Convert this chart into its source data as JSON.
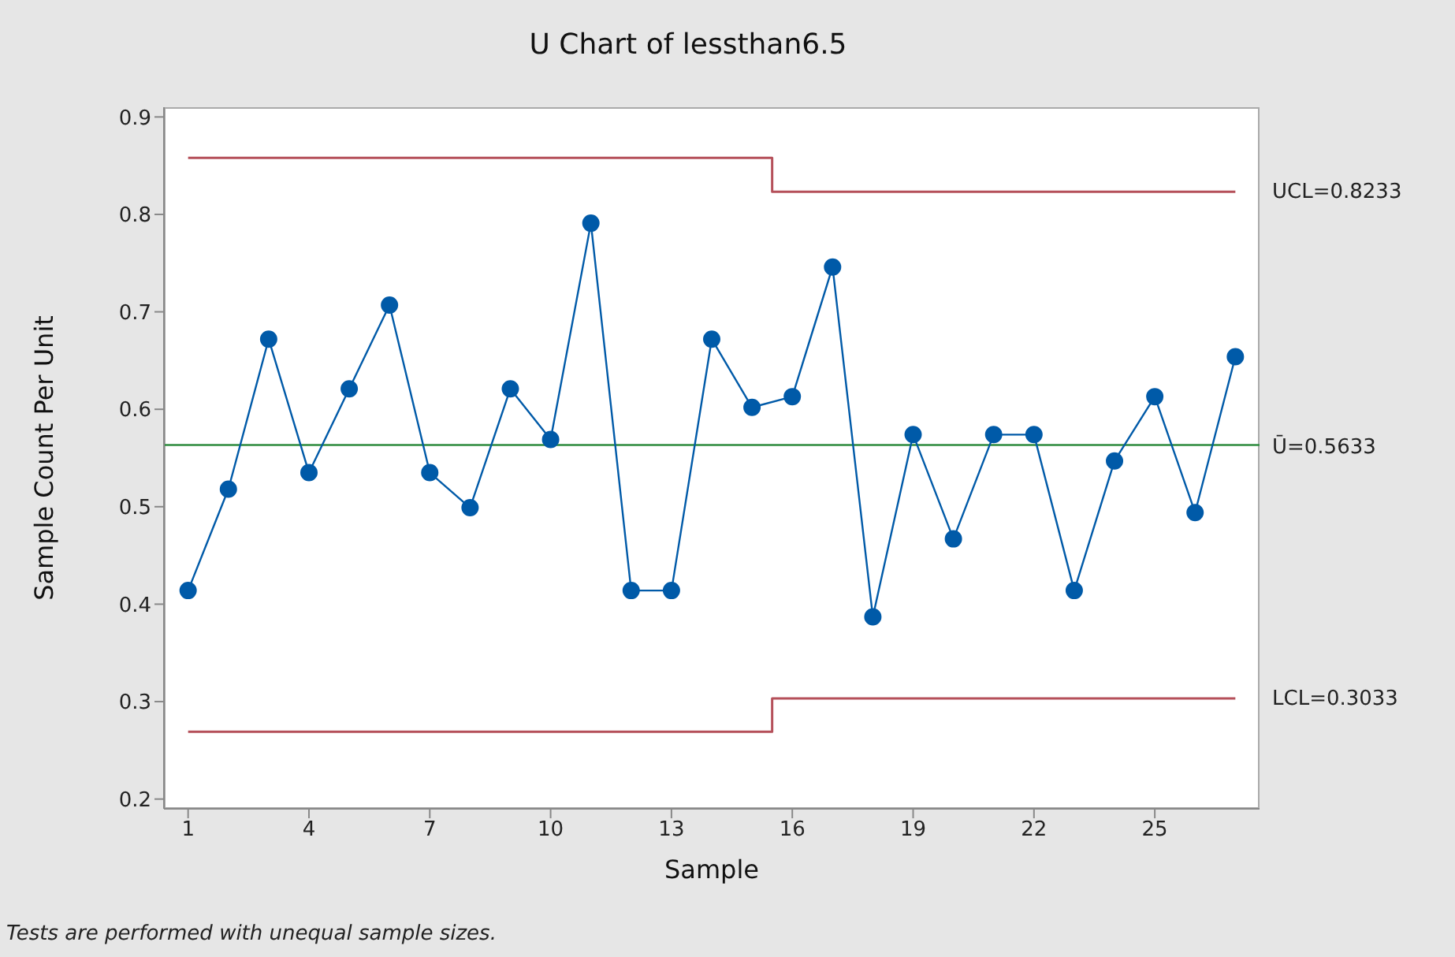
{
  "chart_data": {
    "type": "line",
    "title": "U Chart of lessthan6.5",
    "xlabel": "Sample",
    "ylabel": "Sample Count Per Unit",
    "xlim": [
      0.4,
      27.6
    ],
    "xticks": [
      1,
      4,
      7,
      10,
      13,
      16,
      19,
      22,
      25
    ],
    "ylim": [
      0.19,
      0.91
    ],
    "yticks": [
      0.2,
      0.3,
      0.4,
      0.5,
      0.6,
      0.7,
      0.8,
      0.9
    ],
    "grid": false,
    "series": [
      {
        "color": "#005aa8",
        "marker": "circle",
        "x": [
          1,
          2,
          3,
          4,
          5,
          6,
          7,
          8,
          9,
          10,
          11,
          12,
          13,
          14,
          15,
          16,
          17,
          18,
          19,
          20,
          21,
          22,
          23,
          24,
          25,
          26,
          27
        ],
        "values": [
          0.414,
          0.518,
          0.672,
          0.535,
          0.621,
          0.707,
          0.535,
          0.499,
          0.621,
          0.569,
          0.791,
          0.414,
          0.414,
          0.672,
          0.602,
          0.613,
          0.746,
          0.387,
          0.574,
          0.467,
          0.574,
          0.574,
          0.414,
          0.547,
          0.613,
          0.494,
          0.654
        ]
      },
      {
        "name": "UCL=0.8233",
        "color": "#b5505a",
        "marker": "none",
        "x": [
          1,
          15.5,
          15.5,
          27
        ],
        "values": [
          0.858,
          0.858,
          0.8233,
          0.8233
        ]
      },
      {
        "name": "LCL=0.3033",
        "color": "#b5505a",
        "marker": "none",
        "x": [
          1,
          15.5,
          15.5,
          27
        ],
        "values": [
          0.269,
          0.269,
          0.3033,
          0.3033
        ]
      }
    ],
    "ref_lines": [
      {
        "axis": "y",
        "value": 0.5633,
        "label": "Ū=0.5633",
        "color": "#2e8b3e"
      }
    ],
    "annotations": [
      "Tests are performed with unequal sample sizes."
    ]
  }
}
